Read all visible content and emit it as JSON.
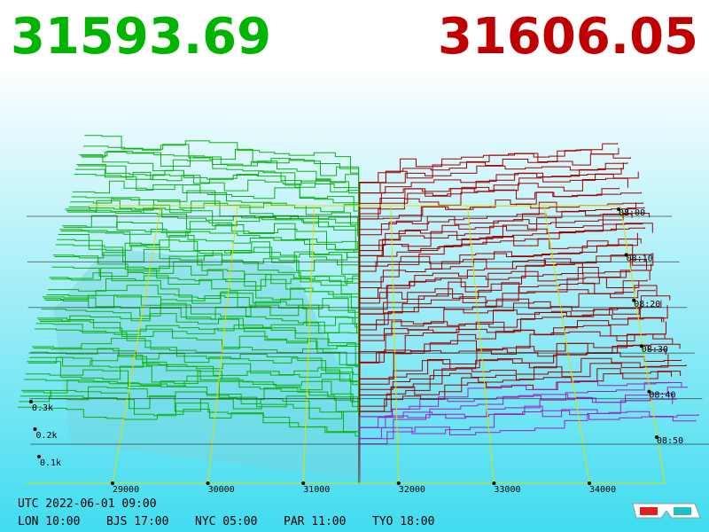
{
  "header": {
    "bid": "31593.69",
    "ask": "31606.05"
  },
  "price_axis": {
    "labels": [
      "29000",
      "30000",
      "31000",
      "32000",
      "33000",
      "34000"
    ]
  },
  "time_axis": {
    "labels": [
      "08:00",
      "08:10",
      "08:20",
      "08:30",
      "08:40",
      "08:50"
    ]
  },
  "depth_axis": {
    "labels": [
      "0.3k",
      "0.2k",
      "0.1k"
    ]
  },
  "footer": {
    "utc": "UTC 2022-06-01 09:00",
    "clocks": [
      "LON 10:00",
      "BJS 17:00",
      "NYC 05:00",
      "PAR 11:00",
      "TYO 18:00"
    ]
  }
}
